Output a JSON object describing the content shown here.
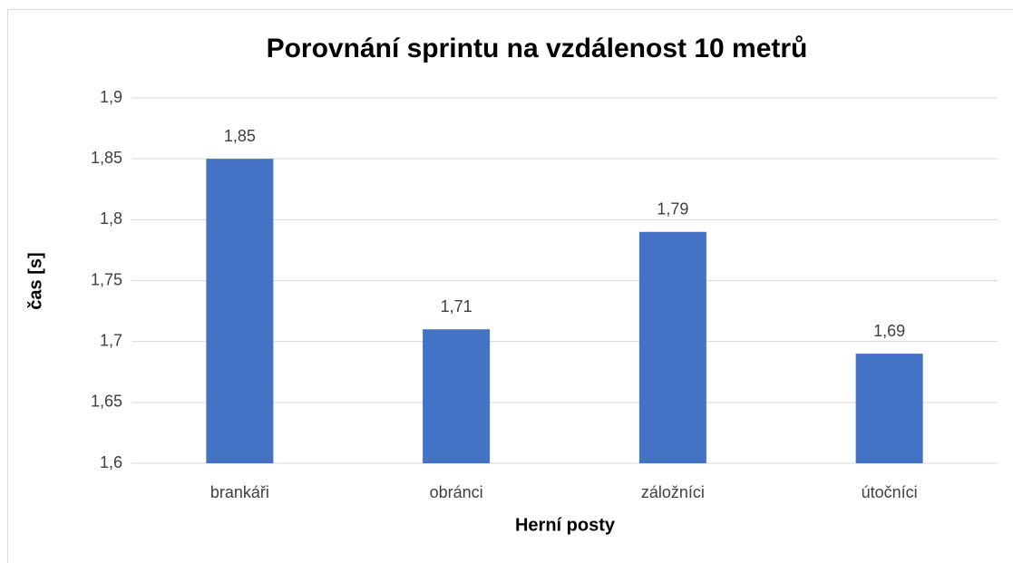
{
  "chart_data": {
    "type": "bar",
    "title": "Porovnání sprintu na vzdálenost 10 metrů",
    "xlabel": "Herní posty",
    "ylabel": "čas [s]",
    "categories": [
      "brankáři",
      "obránci",
      "záložníci",
      "útočníci"
    ],
    "values": [
      1.85,
      1.71,
      1.79,
      1.69
    ],
    "value_labels": [
      "1,85",
      "1,71",
      "1,79",
      "1,69"
    ],
    "color": "#4472c4",
    "ylim": [
      1.6,
      1.9
    ],
    "yticks": [
      {
        "value": 1.6,
        "label": "1,6"
      },
      {
        "value": 1.65,
        "label": "1,65"
      },
      {
        "value": 1.7,
        "label": "1,7"
      },
      {
        "value": 1.75,
        "label": "1,75"
      },
      {
        "value": 1.8,
        "label": "1,8"
      },
      {
        "value": 1.85,
        "label": "1,85"
      },
      {
        "value": 1.9,
        "label": "1,9"
      }
    ],
    "grid": true
  }
}
